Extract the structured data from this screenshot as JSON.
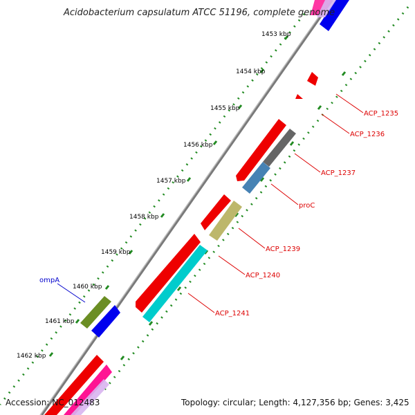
{
  "title": "Acidobacterium capsulatum ATCC 51196, complete genome",
  "accession": "Accession: NC_012483",
  "topology": "Topology: circular; Length: 4,127,356 bp; Genes: 3,425",
  "ticks": [
    "1453 kbp",
    "1454 kbp",
    "1455 kbp",
    "1456 kbp",
    "1457 kbp",
    "1458 kbp",
    "1459 kbp",
    "1460 kbp",
    "1461 kbp",
    "1462 kbp"
  ],
  "genes": {
    "acp1235": "ACP_1235",
    "acp1236": "ACP_1236",
    "acp1237": "ACP_1237",
    "proc": "proC",
    "acp1239": "ACP_1239",
    "acp1240": "ACP_1240",
    "acp1241": "ACP_1241",
    "ompa": "ompA"
  },
  "colors": {
    "cds_red": "#ee0000",
    "gray": "#666666",
    "steelblue": "#4682b4",
    "khaki": "#bdb76b",
    "cyan": "#00cccc",
    "olive": "#6b8e23",
    "blue": "#0000ee",
    "magenta": "#ff1493",
    "tick_green": "#228b22",
    "label_red": "#dd0000",
    "label_blue": "#0000cc"
  }
}
